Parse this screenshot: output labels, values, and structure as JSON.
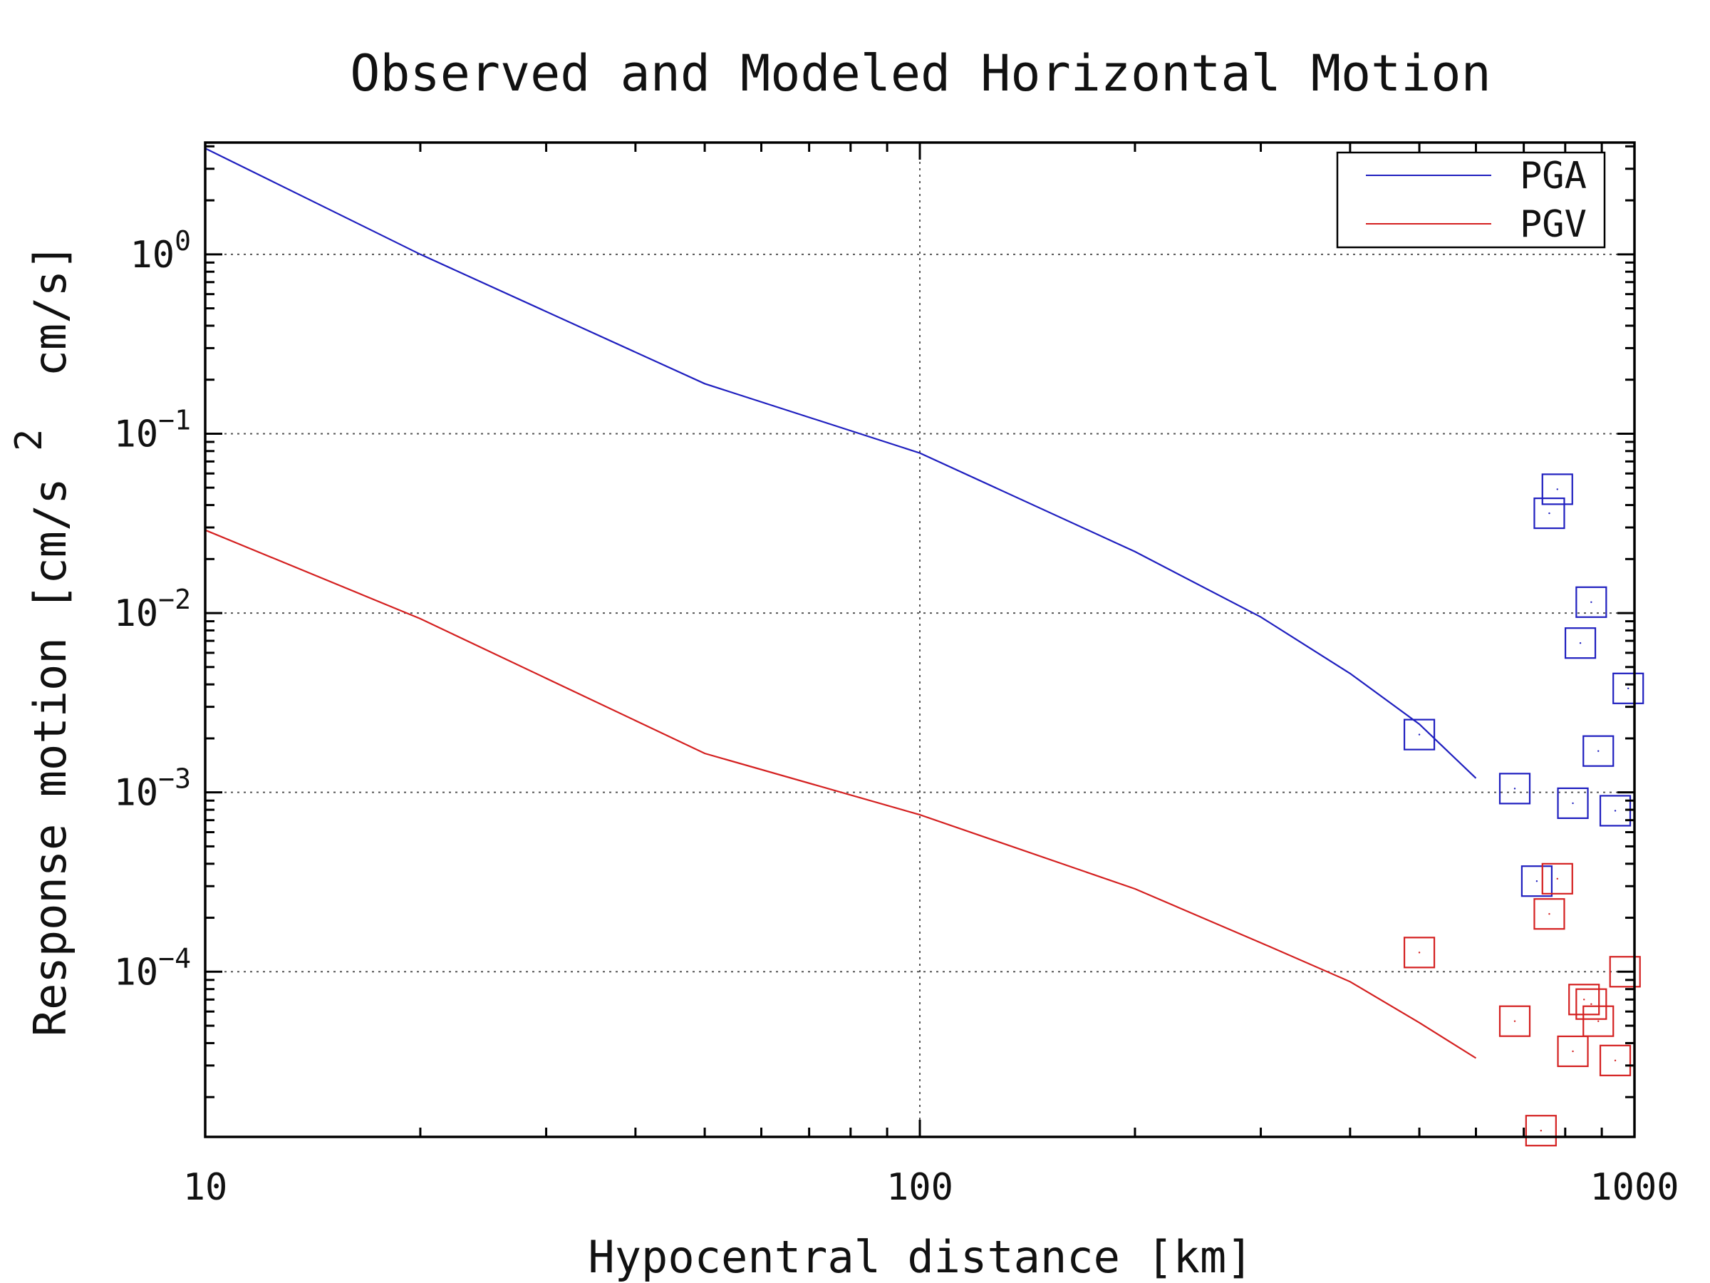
{
  "chart_data": {
    "type": "scatter",
    "title": "Observed and Modeled Horizontal Motion",
    "xlabel": "Hypocentral distance [km]",
    "ylabel_main": "Response motion [cm/s",
    "ylabel_sup": "2",
    "ylabel_tail": "cm/s]",
    "x_scale": "log",
    "y_scale": "log",
    "xlim": [
      10,
      1000
    ],
    "ylim": [
      1.2e-05,
      4.2
    ],
    "grid": true,
    "legend_position": "top-right",
    "x_ticks": [
      {
        "value": 10,
        "label": "10"
      },
      {
        "value": 100,
        "label": "100"
      },
      {
        "value": 1000,
        "label": "1000"
      }
    ],
    "y_ticks": [
      {
        "value": 1,
        "base": "10",
        "exp": "0"
      },
      {
        "value": 0.1,
        "base": "10",
        "exp": "−1"
      },
      {
        "value": 0.01,
        "base": "10",
        "exp": "−2"
      },
      {
        "value": 0.001,
        "base": "10",
        "exp": "−3"
      },
      {
        "value": 0.0001,
        "base": "10",
        "exp": "−4"
      }
    ],
    "series": [
      {
        "name": "PGA",
        "color": "#1f1fbf",
        "line": [
          [
            10,
            3.9
          ],
          [
            20,
            1.0
          ],
          [
            50,
            0.19
          ],
          [
            100,
            0.078
          ],
          [
            200,
            0.022
          ],
          [
            300,
            0.0095
          ],
          [
            400,
            0.0046
          ],
          [
            500,
            0.0024
          ],
          [
            600,
            0.0012
          ]
        ],
        "points": [
          [
            500,
            0.0021
          ],
          [
            680,
            0.00105
          ],
          [
            730,
            0.00032
          ],
          [
            760,
            0.036
          ],
          [
            780,
            0.049
          ],
          [
            820,
            0.00087
          ],
          [
            840,
            0.0068
          ],
          [
            870,
            0.0115
          ],
          [
            890,
            0.0017
          ],
          [
            940,
            0.00079
          ],
          [
            980,
            0.0038
          ]
        ]
      },
      {
        "name": "PGV",
        "color": "#d42020",
        "line": [
          [
            10,
            0.029
          ],
          [
            20,
            0.0093
          ],
          [
            50,
            0.00165
          ],
          [
            100,
            0.00075
          ],
          [
            200,
            0.00029
          ],
          [
            300,
            0.000145
          ],
          [
            400,
            8.8e-05
          ],
          [
            500,
            5.2e-05
          ],
          [
            600,
            3.3e-05
          ]
        ],
        "points": [
          [
            500,
            0.000128
          ],
          [
            680,
            5.3e-05
          ],
          [
            740,
            1.3e-05
          ],
          [
            760,
            0.00021
          ],
          [
            780,
            0.00033
          ],
          [
            820,
            3.6e-05
          ],
          [
            850,
            7e-05
          ],
          [
            870,
            6.6e-05
          ],
          [
            890,
            5.3e-05
          ],
          [
            940,
            3.2e-05
          ],
          [
            970,
            0.0001
          ]
        ]
      }
    ]
  }
}
